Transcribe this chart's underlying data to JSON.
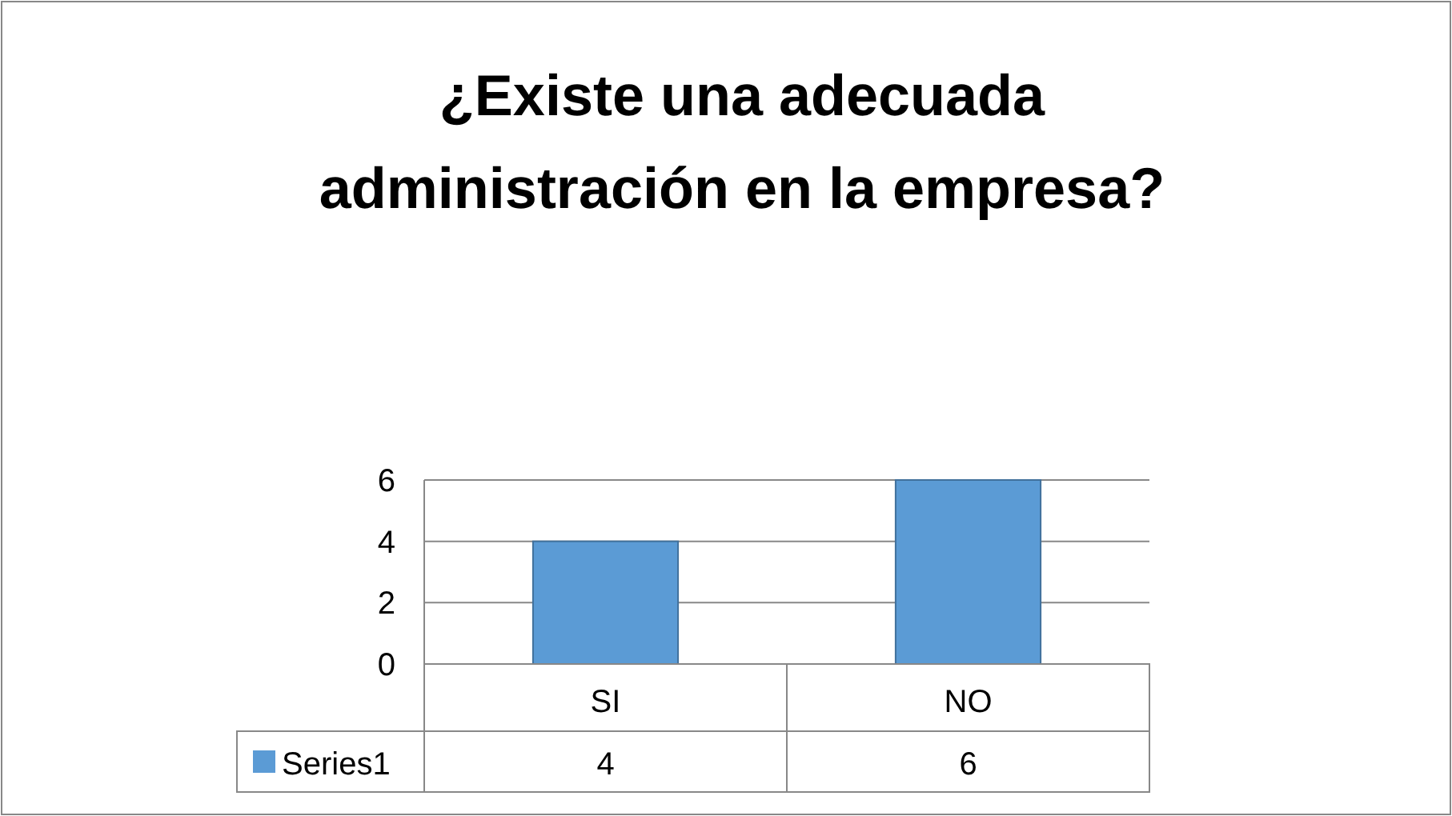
{
  "chart_data": {
    "type": "bar",
    "title": "¿Existe una adecuada administración en la empresa?",
    "categories": [
      "SI",
      "NO"
    ],
    "series": [
      {
        "name": "Series1",
        "color": "#5b9bd5",
        "values": [
          4,
          6
        ]
      }
    ],
    "ylim": [
      0,
      6
    ],
    "yticks": [
      0,
      2,
      4,
      6
    ],
    "grid": "y",
    "data_labels": true,
    "legend": "bottom"
  }
}
